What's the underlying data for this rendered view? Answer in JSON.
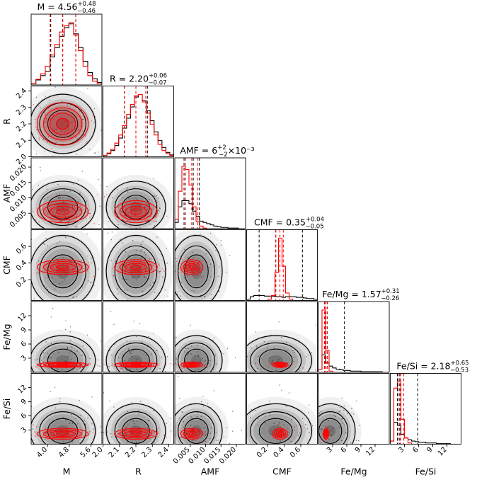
{
  "chart_data": {
    "type": "corner",
    "parameters": [
      "M",
      "R",
      "AMF",
      "CMF",
      "Fe/Mg",
      "Fe/Si"
    ],
    "titles": [
      {
        "param": "M",
        "name": "M",
        "value": "4.56",
        "plus": "+0.48",
        "minus": "−0.46",
        "suffix": ""
      },
      {
        "param": "R",
        "name": "R",
        "value": "2.20",
        "plus": "+0.06",
        "minus": "−0.07",
        "suffix": ""
      },
      {
        "param": "AMF",
        "name": "AMF",
        "value": "6",
        "plus": "+2",
        "minus": "−2",
        "suffix": "×10⁻³"
      },
      {
        "param": "CMF",
        "name": "CMF",
        "value": "0.35",
        "plus": "+0.04",
        "minus": "−0.05",
        "suffix": ""
      },
      {
        "param": "Fe/Mg",
        "name": "Fe/Mg",
        "value": "1.57",
        "plus": "+0.31",
        "minus": "−0.26",
        "suffix": ""
      },
      {
        "param": "Fe/Si",
        "name": "Fe/Si",
        "value": "2.18",
        "plus": "+0.65",
        "minus": "−0.53",
        "suffix": ""
      }
    ],
    "x_labels": [
      "M",
      "R",
      "AMF",
      "CMF",
      "Fe/Mg",
      "Fe/Si"
    ],
    "y_labels": [
      "R",
      "AMF",
      "CMF",
      "Fe/Mg",
      "Fe/Si"
    ],
    "ranges": [
      [
        3.4,
        6.0
      ],
      [
        2.0,
        2.43
      ],
      [
        0.0,
        0.023
      ],
      [
        -0.05,
        0.8
      ],
      [
        0.0,
        15.0
      ],
      [
        0.0,
        15.0
      ]
    ],
    "ticks": [
      {
        "values": [
          4.0,
          4.8,
          5.6
        ],
        "labels": [
          "4.0",
          "4.8",
          "5.6"
        ]
      },
      {
        "values": [
          2.0,
          2.1,
          2.2,
          2.3,
          2.4
        ],
        "labels": [
          "2.0",
          "2.1",
          "2.2",
          "2.3",
          "2.4"
        ]
      },
      {
        "values": [
          0.005,
          0.01,
          0.015,
          0.02
        ],
        "labels": [
          "0.005",
          "0.010",
          "0.015",
          "0.020"
        ]
      },
      {
        "values": [
          0.2,
          0.4,
          0.6
        ],
        "labels": [
          "0.2",
          "0.4",
          "0.6"
        ]
      },
      {
        "values": [
          3,
          6,
          9,
          12
        ],
        "labels": [
          "3",
          "6",
          "9",
          "12"
        ]
      },
      {
        "values": [
          3,
          6,
          9,
          12
        ],
        "labels": [
          "3",
          "6",
          "9",
          "12"
        ]
      }
    ],
    "series": [
      {
        "name": "",
        "color": "#000000",
        "center": [
          4.56,
          2.2,
          0.007,
          0.3,
          2.5,
          2.8
        ],
        "spread": [
          0.5,
          0.075,
          0.0035,
          0.18,
          2.2,
          2.4
        ],
        "quantiles": [
          [
            4.12,
            4.56,
            5.04
          ],
          [
            2.13,
            2.2,
            2.27
          ],
          [
            0.003,
            0.006,
            0.008
          ],
          [
            0.1,
            0.3,
            0.62
          ],
          [
            1.3,
            1.6,
            5.5
          ],
          [
            1.5,
            2.0,
            5.8
          ]
        ]
      },
      {
        "name": "",
        "color": "#ff0000",
        "center": [
          4.56,
          2.2,
          0.0055,
          0.35,
          1.6,
          2.2
        ],
        "spread": [
          0.47,
          0.065,
          0.0018,
          0.045,
          0.28,
          0.58
        ],
        "quantiles": [
          [
            4.1,
            4.56,
            5.04
          ],
          [
            2.13,
            2.2,
            2.26
          ],
          [
            0.0035,
            0.0055,
            0.0075
          ],
          [
            0.3,
            0.35,
            0.39
          ],
          [
            1.31,
            1.57,
            1.88
          ],
          [
            1.65,
            2.18,
            2.83
          ]
        ]
      }
    ],
    "histograms": [
      {
        "param": "M",
        "black": [
          0.02,
          0.08,
          0.15,
          0.22,
          0.45,
          0.6,
          0.78,
          0.92,
          0.98,
          0.82,
          0.6,
          0.38,
          0.2,
          0.1,
          0.04
        ],
        "red": [
          0.02,
          0.09,
          0.18,
          0.3,
          0.48,
          0.65,
          0.85,
          0.95,
          1.0,
          0.8,
          0.55,
          0.3,
          0.15,
          0.06,
          0.02
        ]
      },
      {
        "param": "R",
        "black": [
          0.02,
          0.05,
          0.1,
          0.18,
          0.3,
          0.46,
          0.62,
          0.8,
          0.96,
          1.0,
          0.9,
          0.74,
          0.58,
          0.4,
          0.26,
          0.15,
          0.07,
          0.03
        ],
        "red": [
          0.02,
          0.06,
          0.12,
          0.22,
          0.35,
          0.5,
          0.68,
          0.84,
          0.98,
          1.0,
          0.88,
          0.7,
          0.52,
          0.35,
          0.2,
          0.1,
          0.05,
          0.02
        ]
      },
      {
        "param": "AMF",
        "black": [
          0.1,
          0.35,
          0.45,
          0.45,
          0.4,
          0.28,
          0.2,
          0.12,
          0.1,
          0.08,
          0.06,
          0.04,
          0.03,
          0.02,
          0.02,
          0.01,
          0.01,
          0.01,
          0.0,
          0.0
        ],
        "red": [
          0.15,
          0.6,
          1.0,
          0.95,
          0.7,
          0.35,
          0.12,
          0.04,
          0.01,
          0.0,
          0.0,
          0.0,
          0.0,
          0.0,
          0.0,
          0.0,
          0.0,
          0.0,
          0.0,
          0.0
        ]
      },
      {
        "param": "CMF",
        "black": [
          0.02,
          0.06,
          0.08,
          0.08,
          0.08,
          0.07,
          0.07,
          0.07,
          0.06,
          0.06,
          0.05,
          0.06,
          0.06,
          0.06,
          0.05,
          0.05,
          0.04,
          0.03,
          0.03,
          0.02
        ],
        "red": [
          0.0,
          0.0,
          0.0,
          0.0,
          0.0,
          0.0,
          0.02,
          0.08,
          0.45,
          1.0,
          0.55,
          0.12,
          0.02,
          0.0,
          0.0,
          0.0,
          0.0,
          0.0,
          0.0,
          0.0
        ]
      },
      {
        "param": "Fe/Mg",
        "black": [
          0.05,
          0.28,
          0.15,
          0.1,
          0.07,
          0.05,
          0.04,
          0.03,
          0.03,
          0.02,
          0.02,
          0.02,
          0.01,
          0.01,
          0.01,
          0.01,
          0.01,
          0.01,
          0.0,
          0.0
        ],
        "red": [
          0.05,
          1.0,
          0.35,
          0.02,
          0.0,
          0.0,
          0.0,
          0.0,
          0.0,
          0.0,
          0.0,
          0.0,
          0.0,
          0.0,
          0.0,
          0.0,
          0.0,
          0.0,
          0.0,
          0.0
        ]
      },
      {
        "param": "Fe/Si",
        "black": [
          0.05,
          0.35,
          0.3,
          0.16,
          0.1,
          0.07,
          0.05,
          0.04,
          0.03,
          0.03,
          0.02,
          0.02,
          0.02,
          0.01,
          0.01,
          0.01,
          0.01,
          0.0,
          0.0,
          0.0
        ],
        "red": [
          0.05,
          0.9,
          1.0,
          0.4,
          0.1,
          0.02,
          0.0,
          0.0,
          0.0,
          0.0,
          0.0,
          0.0,
          0.0,
          0.0,
          0.0,
          0.0,
          0.0,
          0.0,
          0.0,
          0.0
        ]
      }
    ],
    "grid": false,
    "legend": "none"
  }
}
